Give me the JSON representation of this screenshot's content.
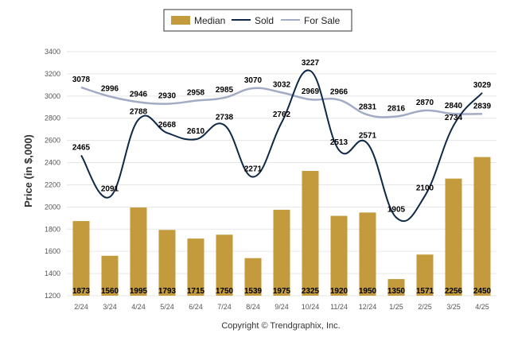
{
  "chart_data": {
    "type": "bar",
    "categories": [
      "2/24",
      "3/24",
      "4/24",
      "5/24",
      "6/24",
      "7/24",
      "8/24",
      "9/24",
      "10/24",
      "11/24",
      "12/24",
      "1/25",
      "2/25",
      "3/25",
      "4/25"
    ],
    "series": [
      {
        "name": "Median",
        "type": "bar",
        "color": "#c39a3c",
        "values": [
          1873,
          1560,
          1995,
          1793,
          1715,
          1750,
          1539,
          1975,
          2325,
          1920,
          1950,
          1350,
          1571,
          2256,
          2450
        ]
      },
      {
        "name": "Sold",
        "type": "line",
        "color": "#0e2846",
        "values": [
          2465,
          2091,
          2788,
          2668,
          2610,
          2738,
          2271,
          2762,
          3227,
          2513,
          2571,
          1905,
          2100,
          2734,
          3029
        ]
      },
      {
        "name": "For Sale",
        "type": "line",
        "color": "#a2abc3",
        "values": [
          3078,
          2996,
          2946,
          2930,
          2958,
          2985,
          3070,
          3032,
          2969,
          2966,
          2831,
          2816,
          2870,
          2840,
          2839
        ]
      }
    ],
    "ylabel": "Price (in $,000)",
    "ylim": [
      1200,
      3400
    ],
    "yticks": [
      1200,
      1400,
      1600,
      1800,
      2000,
      2200,
      2400,
      2600,
      2800,
      3000,
      3200,
      3400
    ],
    "grid": true,
    "legend_position": "top-center"
  },
  "footer": {
    "copyright": "Copyright © Trendgraphix, Inc."
  }
}
